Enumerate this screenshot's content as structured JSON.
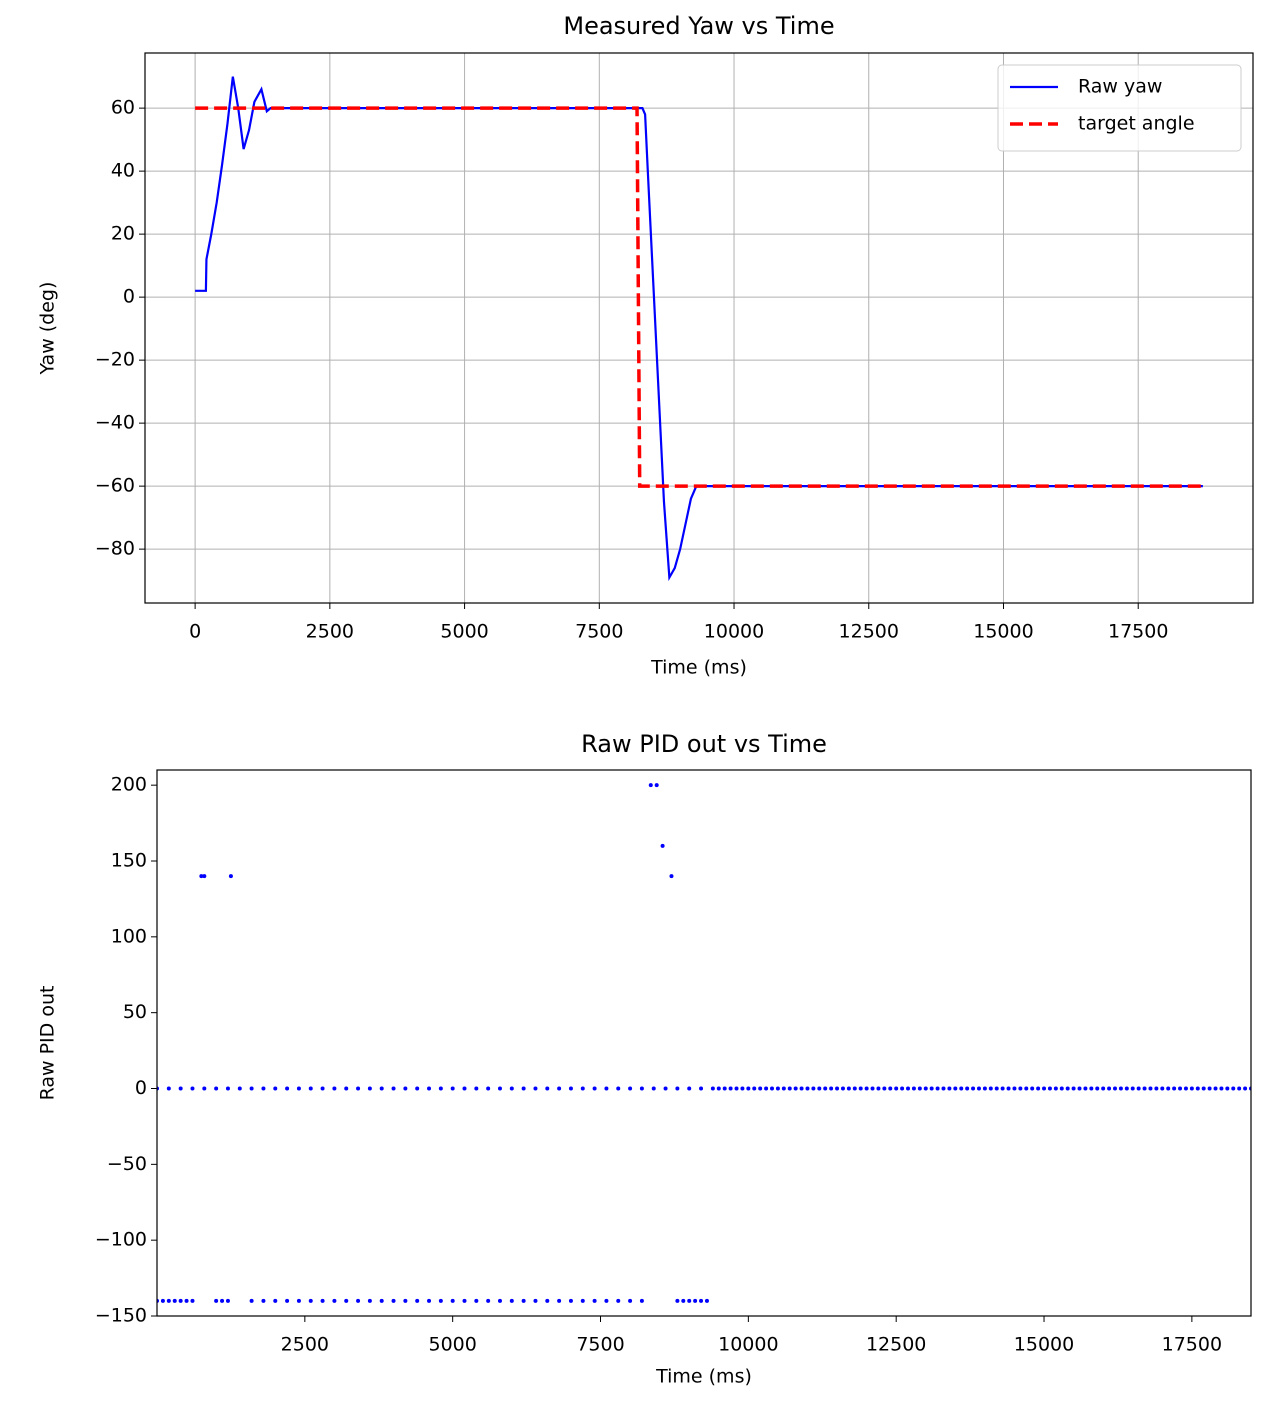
{
  "chart_data": [
    {
      "type": "line",
      "title": "Measured Yaw vs Time",
      "x_label": "Time (ms)",
      "y_label": "Yaw (deg)",
      "xlim": [
        -930,
        19630
      ],
      "ylim": [
        -97.1,
        77.5
      ],
      "xticks": [
        0,
        2500,
        5000,
        7500,
        10000,
        12500,
        15000,
        17500
      ],
      "yticks": [
        {
          "value": -80,
          "label": "−80"
        },
        {
          "value": -60,
          "label": "−60"
        },
        {
          "value": -40,
          "label": "−40"
        },
        {
          "value": -20,
          "label": "−20"
        },
        0,
        20,
        40,
        60
      ],
      "grid": true,
      "legend": "upper right",
      "series": [
        {
          "name": "Raw yaw",
          "color": "#0000ff",
          "linestyle": "solid",
          "x": [
            0,
            100,
            200,
            210,
            300,
            400,
            500,
            600,
            700,
            800,
            900,
            1000,
            1100,
            1230,
            1330,
            1400,
            2000,
            4000,
            6000,
            8000,
            8250,
            8300,
            8350,
            8400,
            8500,
            8600,
            8700,
            8800,
            8900,
            9000,
            9100,
            9200,
            9300,
            10000,
            14000,
            18700
          ],
          "values": [
            2,
            2,
            2,
            12,
            20,
            30,
            42,
            55,
            70,
            60,
            47,
            53,
            62,
            66,
            59,
            60,
            60,
            60,
            60,
            60,
            60,
            60,
            58,
            40,
            5,
            -30,
            -65,
            -89,
            -86,
            -80,
            -72,
            -64,
            -60,
            -60,
            -60,
            -60
          ]
        },
        {
          "name": "target angle",
          "color": "#ff0000",
          "linestyle": "dashed",
          "x": [
            0,
            8200,
            8250,
            18700
          ],
          "values": [
            60,
            60,
            -60,
            -60
          ]
        }
      ]
    },
    {
      "type": "scatter",
      "title": "Raw PID out vs Time",
      "x_label": "Time (ms)",
      "y_label": "Raw PID out",
      "xlim": [
        0,
        18500
      ],
      "ylim": [
        -150,
        210
      ],
      "xticks": [
        2500,
        5000,
        7500,
        10000,
        12500,
        15000,
        17500
      ],
      "yticks": [
        {
          "value": -150,
          "label": "−150"
        },
        {
          "value": -100,
          "label": "−100"
        },
        {
          "value": -50,
          "label": "−50"
        },
        0,
        50,
        100,
        150,
        200
      ],
      "grid": false,
      "series": [
        {
          "color": "#0000ff",
          "x": [
            0,
            200,
            400,
            600,
            800,
            1000,
            1200,
            1400,
            1600,
            1800,
            2000,
            2200,
            2400,
            2600,
            2800,
            3000,
            3200,
            3400,
            3600,
            3800,
            4000,
            4200,
            4400,
            4600,
            4800,
            5000,
            5200,
            5400,
            5600,
            5800,
            6000,
            6200,
            6400,
            6600,
            6800,
            7000,
            7200,
            7400,
            7600,
            7800,
            8000,
            8200,
            8400,
            8600,
            8800,
            9000,
            9200,
            9400,
            9500,
            9600,
            9700,
            9800,
            9900,
            10000,
            10100,
            10200,
            10300,
            10400,
            10500,
            10600,
            10700,
            10800,
            10900,
            11000,
            11100,
            11200,
            11300,
            11400,
            11500,
            11600,
            11700,
            11800,
            11900,
            12000,
            12100,
            12200,
            12300,
            12400,
            12500,
            12600,
            12700,
            12800,
            12900,
            13000,
            13100,
            13200,
            13300,
            13400,
            13500,
            13600,
            13700,
            13800,
            13900,
            14000,
            14100,
            14200,
            14300,
            14400,
            14500,
            14600,
            14700,
            14800,
            14900,
            15000,
            15100,
            15200,
            15300,
            15400,
            15500,
            15600,
            15700,
            15800,
            15900,
            16000,
            16100,
            16200,
            16300,
            16400,
            16500,
            16600,
            16700,
            16800,
            16900,
            17000,
            17100,
            17200,
            17300,
            17400,
            17500,
            17600,
            17700,
            17800,
            17900,
            18000,
            18100,
            18200,
            18300,
            18400,
            18500,
            0,
            100,
            200,
            300,
            400,
            500,
            600,
            1000,
            1100,
            1200,
            1600,
            1800,
            2000,
            2200,
            2400,
            2600,
            2800,
            3000,
            3200,
            3400,
            3600,
            3800,
            4000,
            4200,
            4400,
            4600,
            4800,
            5000,
            5200,
            5400,
            5600,
            5800,
            6000,
            6200,
            6400,
            6600,
            6800,
            7000,
            7200,
            7400,
            7600,
            7800,
            8000,
            8200,
            8800,
            8900,
            9000,
            9100,
            9200,
            9300,
            750,
            800,
            1250,
            8350,
            8450,
            8550,
            8700
          ],
          "values": [
            0,
            0,
            0,
            0,
            0,
            0,
            0,
            0,
            0,
            0,
            0,
            0,
            0,
            0,
            0,
            0,
            0,
            0,
            0,
            0,
            0,
            0,
            0,
            0,
            0,
            0,
            0,
            0,
            0,
            0,
            0,
            0,
            0,
            0,
            0,
            0,
            0,
            0,
            0,
            0,
            0,
            0,
            0,
            0,
            0,
            0,
            0,
            0,
            0,
            0,
            0,
            0,
            0,
            0,
            0,
            0,
            0,
            0,
            0,
            0,
            0,
            0,
            0,
            0,
            0,
            0,
            0,
            0,
            0,
            0,
            0,
            0,
            0,
            0,
            0,
            0,
            0,
            0,
            0,
            0,
            0,
            0,
            0,
            0,
            0,
            0,
            0,
            0,
            0,
            0,
            0,
            0,
            0,
            0,
            0,
            0,
            0,
            0,
            0,
            0,
            0,
            0,
            0,
            0,
            0,
            0,
            0,
            0,
            0,
            0,
            0,
            0,
            0,
            0,
            0,
            0,
            0,
            0,
            0,
            0,
            0,
            0,
            0,
            0,
            0,
            0,
            0,
            0,
            0,
            0,
            0,
            0,
            0,
            0,
            0,
            0,
            0,
            0,
            0,
            -140,
            -140,
            -140,
            -140,
            -140,
            -140,
            -140,
            -140,
            -140,
            -140,
            -140,
            -140,
            -140,
            -140,
            -140,
            -140,
            -140,
            -140,
            -140,
            -140,
            -140,
            -140,
            -140,
            -140,
            -140,
            -140,
            -140,
            -140,
            -140,
            -140,
            -140,
            -140,
            -140,
            -140,
            -140,
            -140,
            -140,
            -140,
            -140,
            -140,
            -140,
            -140,
            -140,
            -140,
            -140,
            -140,
            -140,
            -140,
            -140,
            -140,
            140,
            140,
            140,
            200,
            200,
            160,
            140
          ]
        }
      ]
    }
  ]
}
